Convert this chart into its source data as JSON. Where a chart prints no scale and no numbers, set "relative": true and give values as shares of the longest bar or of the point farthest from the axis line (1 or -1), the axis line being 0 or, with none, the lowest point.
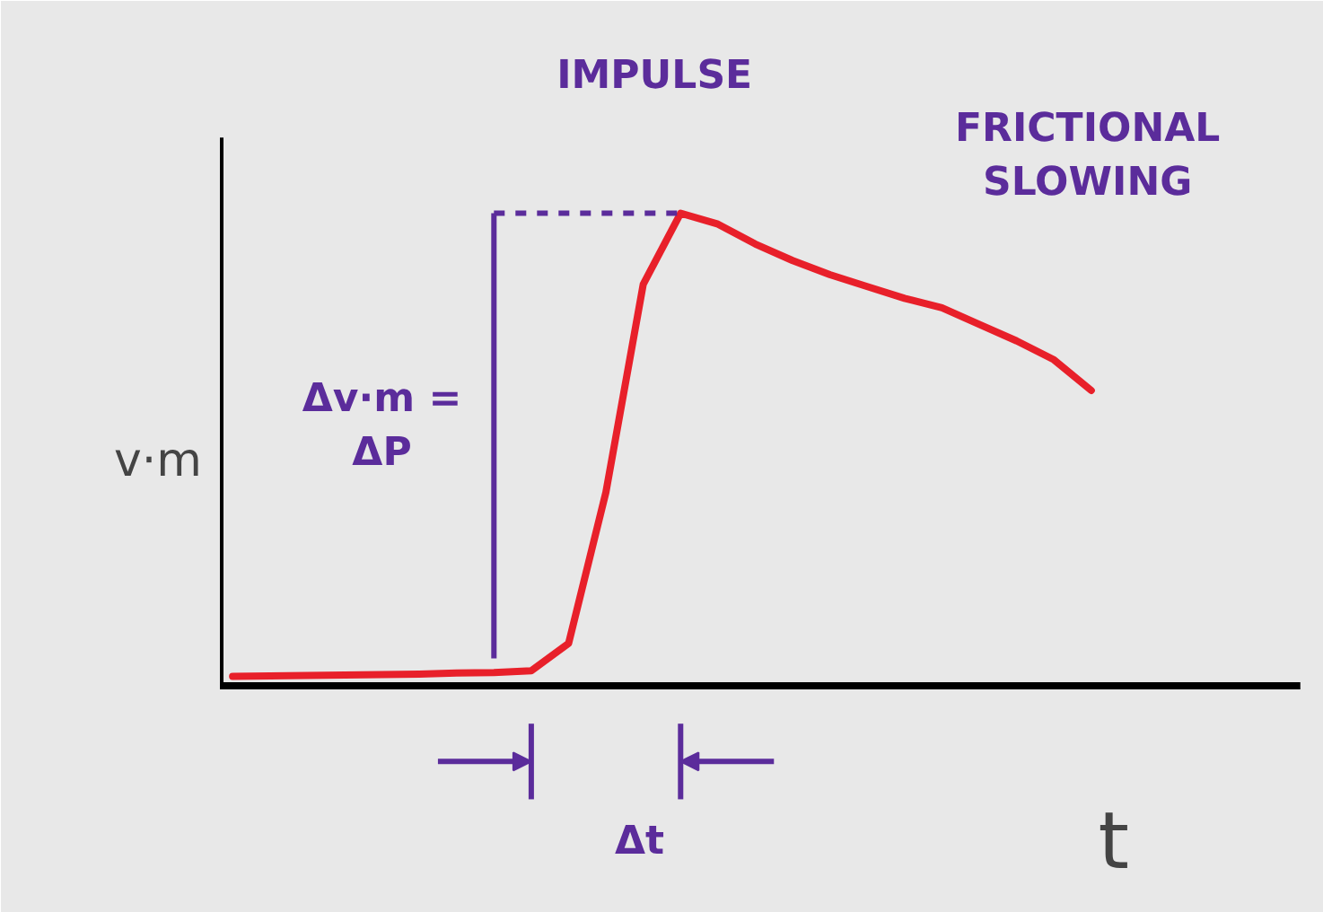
{
  "chart_data": {
    "type": "line",
    "relative": true,
    "xlabel": "t",
    "ylabel": "v·m",
    "marker": "none",
    "line_style": "solid",
    "categories": [
      null,
      null,
      null,
      null,
      null,
      null,
      null,
      null,
      null,
      null,
      null,
      null,
      null,
      null,
      null,
      null,
      null,
      null,
      null,
      null,
      null,
      null,
      null,
      null
    ],
    "series": [
      {
        "color": "#e8202a",
        "values": [
          0.02,
          0.021,
          0.022,
          0.023,
          0.024,
          0.025,
          0.027,
          0.028,
          0.032,
          0.09,
          0.41,
          0.85,
          1,
          0.977,
          0.935,
          0.9,
          0.87,
          0.845,
          0.82,
          0.8,
          0.765,
          0.73,
          0.69,
          0.625
        ]
      }
    ],
    "annotations": [
      "IMPULSE",
      "FRICTIONAL SLOWING",
      "Δv·m = ΔP",
      "Δt"
    ]
  }
}
